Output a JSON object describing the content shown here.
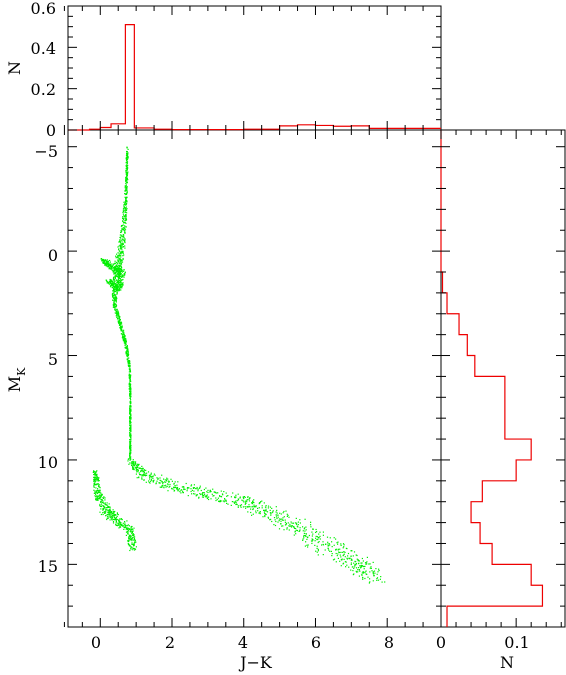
{
  "chart_data": [
    {
      "type": "scatter",
      "panel": "main",
      "xlabel": "J−K",
      "ylabel_main": "M",
      "ylabel_sub": "K",
      "xlim": [
        -0.9,
        9.5
      ],
      "ylim": [
        18,
        -5.8
      ],
      "y_inverted": true,
      "x_ticks": [
        0,
        2,
        4,
        6,
        8
      ],
      "y_ticks": [
        -5,
        0,
        5,
        10,
        15
      ],
      "point_color": "#00ee00",
      "sequences": [
        {
          "name": "giant branch",
          "path": [
            [
              0.74,
              -5.0
            ],
            [
              0.72,
              -3.5
            ],
            [
              0.68,
              -2.0
            ],
            [
              0.6,
              -0.5
            ],
            [
              0.5,
              0.5
            ],
            [
              0.4,
              1.5
            ],
            [
              0.38,
              2.5
            ],
            [
              0.55,
              3.5
            ],
            [
              0.7,
              4.5
            ],
            [
              0.8,
              5.5
            ],
            [
              0.82,
              7.0
            ],
            [
              0.82,
              8.5
            ],
            [
              0.82,
              10.0
            ]
          ],
          "width": [
            0.05,
            0.06,
            0.1,
            0.18,
            0.22,
            0.18,
            0.1,
            0.08,
            0.08,
            0.05,
            0.04,
            0.04,
            0.04
          ]
        },
        {
          "name": "red clump",
          "path": [
            [
              0.05,
              0.4
            ],
            [
              0.3,
              0.7
            ],
            [
              0.6,
              1.0
            ],
            [
              0.5,
              1.8
            ],
            [
              0.2,
              1.4
            ]
          ],
          "width": [
            0.15,
            0.2,
            0.2,
            0.15,
            0.15
          ]
        },
        {
          "name": "lower main sequence",
          "path": [
            [
              0.82,
              10.0
            ],
            [
              1.2,
              10.7
            ],
            [
              2.0,
              11.2
            ],
            [
              3.0,
              11.6
            ],
            [
              4.0,
              12.0
            ],
            [
              4.8,
              12.6
            ],
            [
              5.6,
              13.3
            ],
            [
              6.4,
              14.2
            ],
            [
              7.2,
              15.0
            ],
            [
              7.7,
              15.6
            ]
          ],
          "width": [
            0.15,
            0.35,
            0.35,
            0.35,
            0.4,
            0.5,
            0.55,
            0.6,
            0.6,
            0.5
          ]
        },
        {
          "name": "white dwarfs",
          "path": [
            [
              -0.15,
              10.5
            ],
            [
              -0.1,
              11.5
            ],
            [
              0.1,
              12.3
            ],
            [
              0.4,
              12.8
            ],
            [
              0.8,
              13.3
            ],
            [
              0.9,
              14.2
            ]
          ],
          "width": [
            0.12,
            0.2,
            0.3,
            0.3,
            0.25,
            0.2
          ]
        }
      ]
    },
    {
      "type": "histogram",
      "panel": "top",
      "ylabel": "N",
      "ylim": [
        0,
        0.6
      ],
      "y_ticks": [
        0,
        0.2,
        0.4,
        0.6
      ],
      "color": "#ee0000",
      "bin_edges": [
        -0.9,
        -0.3,
        0.0,
        0.3,
        0.7,
        0.95,
        1.5,
        2.0,
        3.0,
        4.0,
        5.0,
        5.5,
        6.0,
        6.5,
        7.0,
        7.5,
        9.5
      ],
      "values": [
        0.0,
        0.004,
        0.012,
        0.03,
        0.51,
        0.01,
        0.004,
        0.002,
        0.002,
        0.004,
        0.02,
        0.025,
        0.022,
        0.018,
        0.02,
        0.008
      ]
    },
    {
      "type": "histogram",
      "panel": "right",
      "orientation": "horizontal",
      "xlabel": "N",
      "xlim": [
        0,
        0.165
      ],
      "x_ticks": [
        0,
        0.1
      ],
      "color": "#ee0000",
      "bin_edges": [
        -5.8,
        1,
        2,
        3,
        4,
        5,
        6,
        9,
        10,
        11,
        12,
        13,
        14,
        15,
        16,
        17,
        18
      ],
      "values": [
        0,
        0.002,
        0.008,
        0.024,
        0.035,
        0.045,
        0.085,
        0.12,
        0.1,
        0.055,
        0.04,
        0.052,
        0.068,
        0.12,
        0.135,
        0.008
      ]
    }
  ],
  "labels": {
    "x_title": "J−K",
    "y_title": "M",
    "y_title_sub": "K",
    "top_y_title": "N",
    "right_x_title": "N",
    "x_tick_labels": [
      "0",
      "2",
      "4",
      "6",
      "8"
    ],
    "y_tick_labels": [
      "−5",
      "0",
      "5",
      "10",
      "15"
    ],
    "top_tick_labels": [
      "0",
      "0.2",
      "0.4",
      "0.6"
    ],
    "right_tick_labels": [
      "0",
      "0.1"
    ]
  }
}
